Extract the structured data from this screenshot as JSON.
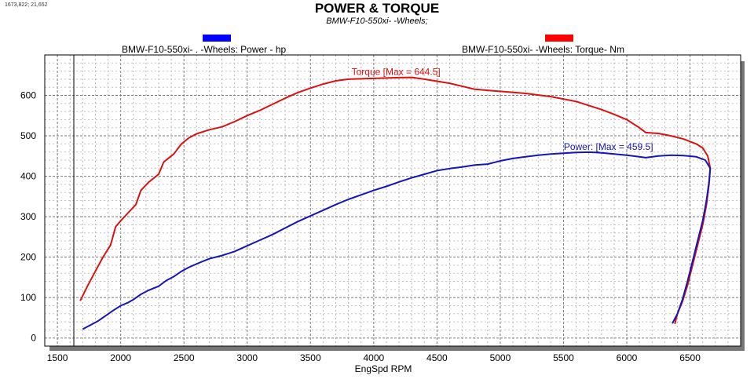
{
  "window": {
    "coords_readout": "1673,822; 21,652"
  },
  "chart_data": {
    "type": "line",
    "title": "POWER & TORQUE",
    "subtitle": "BMW-F10-550xi-     -Wheels;",
    "xlabel": "EngSpd  RPM",
    "ylabel": "",
    "xlim": [
      1400,
      6900
    ],
    "ylim": [
      -20,
      700
    ],
    "x_ticks": [
      1500,
      2000,
      2500,
      3000,
      3500,
      4000,
      4500,
      5000,
      5500,
      6000,
      6500
    ],
    "y_ticks": [
      0,
      100,
      200,
      300,
      400,
      500,
      600
    ],
    "grid": true,
    "legend": [
      {
        "label": "BMW-F10-550xi-  .    -Wheels: Power -  hp",
        "color": "#0000ff"
      },
      {
        "label": "BMW-F10-550xi-       -Wheels: Torque-  Nm",
        "color": "#ff0000"
      }
    ],
    "series": [
      {
        "name": "Torque",
        "color": "#dd1111",
        "annotation": "Torque [Max = 644.5]",
        "points": [
          [
            1680,
            92
          ],
          [
            1740,
            130
          ],
          [
            1800,
            165
          ],
          [
            1860,
            200
          ],
          [
            1920,
            230
          ],
          [
            1960,
            275
          ],
          [
            2000,
            290
          ],
          [
            2060,
            310
          ],
          [
            2120,
            330
          ],
          [
            2160,
            365
          ],
          [
            2220,
            385
          ],
          [
            2300,
            405
          ],
          [
            2340,
            435
          ],
          [
            2420,
            455
          ],
          [
            2480,
            480
          ],
          [
            2540,
            495
          ],
          [
            2600,
            505
          ],
          [
            2700,
            515
          ],
          [
            2800,
            522
          ],
          [
            2900,
            535
          ],
          [
            3000,
            550
          ],
          [
            3100,
            563
          ],
          [
            3200,
            578
          ],
          [
            3300,
            593
          ],
          [
            3400,
            607
          ],
          [
            3500,
            618
          ],
          [
            3600,
            628
          ],
          [
            3700,
            636
          ],
          [
            3800,
            640
          ],
          [
            4000,
            642
          ],
          [
            4200,
            644
          ],
          [
            4300,
            644.5
          ],
          [
            4400,
            640
          ],
          [
            4600,
            630
          ],
          [
            4800,
            615
          ],
          [
            5000,
            610
          ],
          [
            5200,
            605
          ],
          [
            5400,
            597
          ],
          [
            5600,
            585
          ],
          [
            5800,
            565
          ],
          [
            5900,
            553
          ],
          [
            6000,
            540
          ],
          [
            6100,
            520
          ],
          [
            6150,
            508
          ],
          [
            6250,
            506
          ],
          [
            6350,
            500
          ],
          [
            6450,
            492
          ],
          [
            6550,
            480
          ],
          [
            6600,
            470
          ],
          [
            6640,
            450
          ],
          [
            6660,
            420
          ],
          [
            6650,
            380
          ],
          [
            6630,
            330
          ],
          [
            6600,
            280
          ],
          [
            6560,
            230
          ],
          [
            6520,
            180
          ],
          [
            6480,
            130
          ],
          [
            6440,
            90
          ],
          [
            6400,
            60
          ],
          [
            6380,
            35
          ]
        ]
      },
      {
        "name": "Power",
        "color": "#1515bb",
        "annotation": "Power: [Max = 459.5]",
        "points": [
          [
            1700,
            22
          ],
          [
            1760,
            32
          ],
          [
            1820,
            42
          ],
          [
            1880,
            55
          ],
          [
            1940,
            68
          ],
          [
            2000,
            80
          ],
          [
            2060,
            88
          ],
          [
            2100,
            95
          ],
          [
            2160,
            108
          ],
          [
            2220,
            118
          ],
          [
            2300,
            128
          ],
          [
            2360,
            142
          ],
          [
            2420,
            152
          ],
          [
            2480,
            165
          ],
          [
            2540,
            175
          ],
          [
            2620,
            186
          ],
          [
            2700,
            196
          ],
          [
            2800,
            204
          ],
          [
            2900,
            214
          ],
          [
            3000,
            228
          ],
          [
            3100,
            242
          ],
          [
            3200,
            256
          ],
          [
            3300,
            272
          ],
          [
            3400,
            288
          ],
          [
            3500,
            302
          ],
          [
            3600,
            316
          ],
          [
            3700,
            330
          ],
          [
            3800,
            343
          ],
          [
            3900,
            354
          ],
          [
            4000,
            365
          ],
          [
            4100,
            375
          ],
          [
            4200,
            386
          ],
          [
            4300,
            396
          ],
          [
            4400,
            405
          ],
          [
            4500,
            414
          ],
          [
            4600,
            419
          ],
          [
            4700,
            423
          ],
          [
            4800,
            428
          ],
          [
            4900,
            430
          ],
          [
            5000,
            438
          ],
          [
            5100,
            444
          ],
          [
            5200,
            448
          ],
          [
            5300,
            452
          ],
          [
            5400,
            455
          ],
          [
            5500,
            457
          ],
          [
            5600,
            459
          ],
          [
            5700,
            459.5
          ],
          [
            5800,
            458
          ],
          [
            5900,
            455
          ],
          [
            6000,
            452
          ],
          [
            6100,
            448
          ],
          [
            6150,
            446
          ],
          [
            6250,
            450
          ],
          [
            6350,
            452
          ],
          [
            6450,
            451
          ],
          [
            6550,
            448
          ],
          [
            6620,
            440
          ],
          [
            6660,
            420
          ],
          [
            6650,
            385
          ],
          [
            6630,
            340
          ],
          [
            6600,
            290
          ],
          [
            6560,
            240
          ],
          [
            6520,
            190
          ],
          [
            6480,
            140
          ],
          [
            6440,
            95
          ],
          [
            6400,
            60
          ],
          [
            6360,
            36
          ]
        ]
      }
    ]
  }
}
